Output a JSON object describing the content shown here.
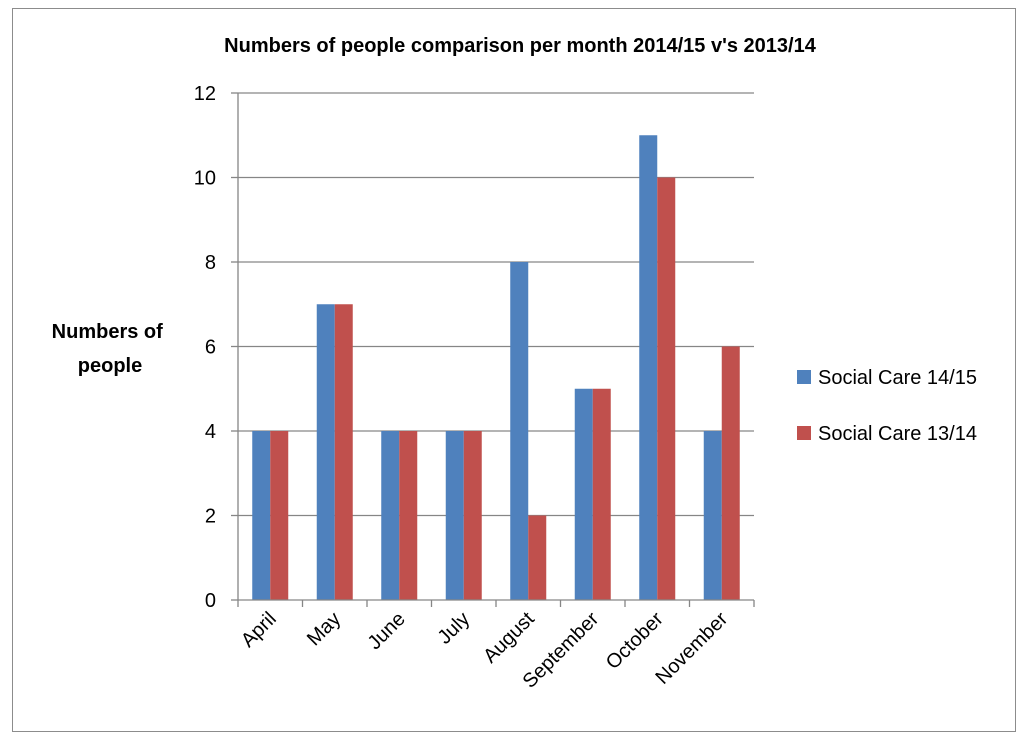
{
  "chart_data": {
    "type": "bar",
    "title": "Numbers of people comparison per month 2014/15 v's 2013/14",
    "ylabel_lines": [
      "Numbers of",
      "people"
    ],
    "xlabel": "",
    "categories": [
      "April",
      "May",
      "June",
      "July",
      "August",
      "September",
      "October",
      "November"
    ],
    "series": [
      {
        "name": "Social Care 14/15",
        "color": "#4f81bd",
        "values": [
          4,
          7,
          4,
          4,
          8,
          5,
          11,
          4
        ]
      },
      {
        "name": "Social Care 13/14",
        "color": "#c0504d",
        "values": [
          4,
          7,
          4,
          4,
          2,
          5,
          10,
          6
        ]
      }
    ],
    "ylim": [
      0,
      12
    ],
    "yticks": [
      0,
      2,
      4,
      6,
      8,
      10,
      12
    ],
    "grid": true,
    "legend": "right"
  }
}
